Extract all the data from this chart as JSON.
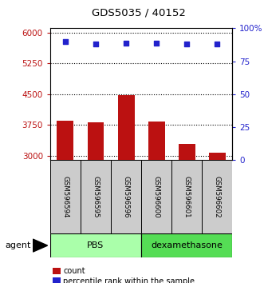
{
  "title": "GDS5035 / 40152",
  "samples": [
    "GSM596594",
    "GSM596595",
    "GSM596596",
    "GSM596600",
    "GSM596601",
    "GSM596602"
  ],
  "bar_values": [
    3850,
    3820,
    4480,
    3830,
    3280,
    3080
  ],
  "scatter_values": [
    90,
    88,
    89,
    89,
    88,
    88
  ],
  "ylim_left": [
    2900,
    6100
  ],
  "ylim_right": [
    0,
    100
  ],
  "yticks_left": [
    3000,
    3750,
    4500,
    5250,
    6000
  ],
  "yticks_right": [
    0,
    25,
    50,
    75,
    100
  ],
  "ytick_labels_right": [
    "0",
    "25",
    "50",
    "75",
    "100%"
  ],
  "bar_color": "#bb1111",
  "scatter_color": "#2222cc",
  "groups": [
    {
      "label": "PBS",
      "color": "#aaffaa",
      "darker_color": "#55cc55",
      "start": 0,
      "end": 3
    },
    {
      "label": "dexamethasone",
      "color": "#55dd55",
      "darker_color": "#33bb33",
      "start": 3,
      "end": 6
    }
  ],
  "agent_label": "agent",
  "legend_items": [
    {
      "label": "count",
      "color": "#bb1111"
    },
    {
      "label": "percentile rank within the sample",
      "color": "#2222cc"
    }
  ],
  "background_color": "#ffffff",
  "plot_bg": "#ffffff",
  "bar_width": 0.55,
  "sample_box_color": "#cccccc"
}
